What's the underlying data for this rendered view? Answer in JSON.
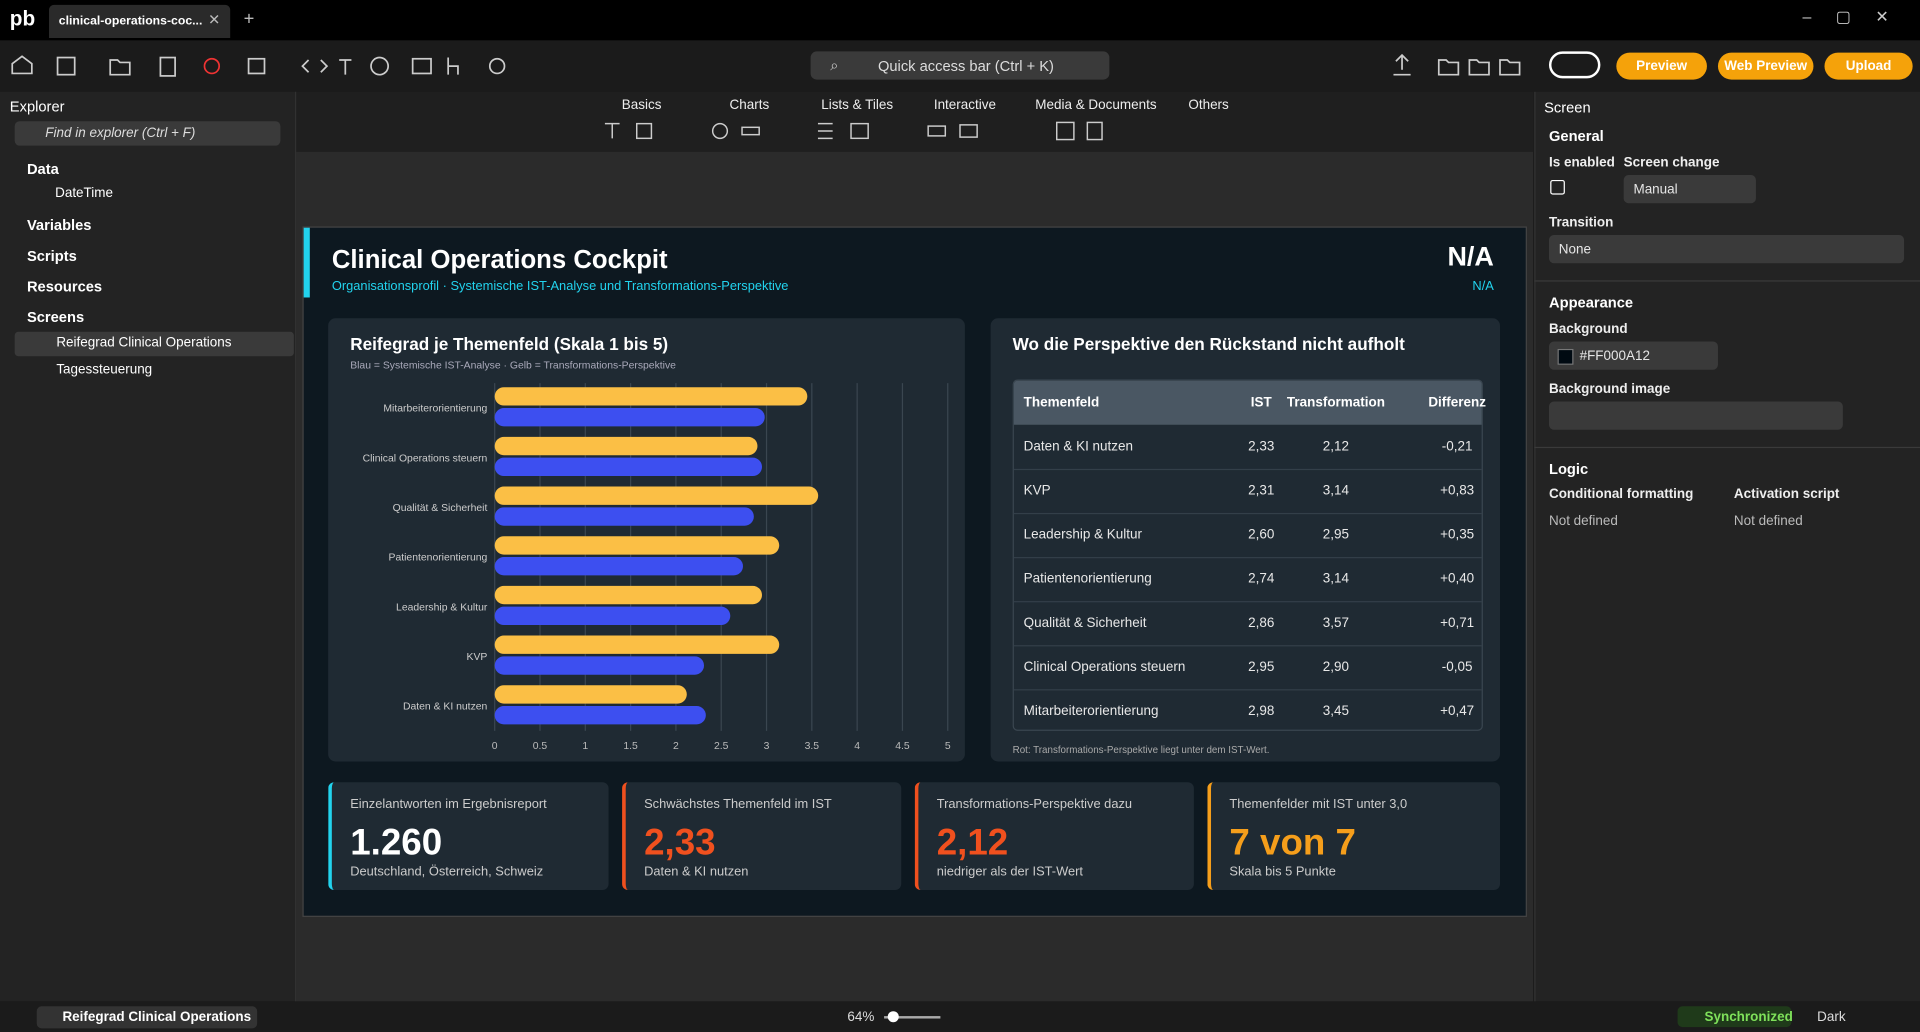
{
  "app": {
    "logo": "pb",
    "tab": "clinical-operations-coc...",
    "quick_access": "Quick access bar (Ctrl + K)",
    "buttons": [
      "Preview",
      "Web Preview",
      "Upload"
    ]
  },
  "explorer": {
    "title": "Explorer",
    "search": "Find in explorer (Ctrl + F)",
    "items": [
      "Data",
      "DateTime",
      "Variables",
      "Scripts",
      "Resources",
      "Screens",
      "Reifegrad Clinical Operations",
      "Tagessteuerung"
    ]
  },
  "ribbon": {
    "tabs": [
      "Basics",
      "Charts",
      "Lists & Tiles",
      "Interactive",
      "Media & Documents",
      "Others"
    ]
  },
  "properties": {
    "title": "Screen",
    "general": "General",
    "is_enabled": "Is enabled",
    "screen_change": "Screen change",
    "screen_change_value": "Manual",
    "transition": "Transition",
    "transition_value": "None",
    "appearance": "Appearance",
    "background": "Background",
    "background_value": "#FF000A12",
    "background_image": "Background image",
    "logic": "Logic",
    "conditional_formatting": "Conditional formatting",
    "conditional_formatting_value": "Not defined",
    "activation_script": "Activation script",
    "activation_script_value": "Not defined"
  },
  "status": {
    "screen": "Reifegrad Clinical Operations",
    "zoom": "64%",
    "sync": "Synchronized",
    "theme": "Dark"
  },
  "dashboard": {
    "title": "Clinical Operations Cockpit",
    "subtitle": "Organisationsprofil · Systemische IST-Analyse und Transformations-Perspektive",
    "status": "N/A",
    "status_sub": "N/A",
    "table": {
      "title": "Wo die Perspektive den Rückstand nicht aufholt",
      "header": [
        "Themenfeld",
        "IST",
        "Transformation",
        "Differenz"
      ],
      "rows": [
        [
          "Daten & KI nutzen",
          "2,33",
          "2,12",
          "-0,21"
        ],
        [
          "KVP",
          "2,31",
          "3,14",
          "+0,83"
        ],
        [
          "Leadership & Kultur",
          "2,60",
          "2,95",
          "+0,35"
        ],
        [
          "Patientenorientierung",
          "2,74",
          "3,14",
          "+0,40"
        ],
        [
          "Qualität & Sicherheit",
          "2,86",
          "3,57",
          "+0,71"
        ],
        [
          "Clinical Operations steuern",
          "2,95",
          "2,90",
          "-0,05"
        ],
        [
          "Mitarbeiterorientierung",
          "2,98",
          "3,45",
          "+0,47"
        ]
      ],
      "note": "Rot: Transformations-Perspektive liegt unter dem IST-Wert."
    },
    "kpis": [
      {
        "label": "Einzelantworten im Ergebnisreport",
        "value": "1.260",
        "sub": "Deutschland, Österreich, Schweiz",
        "color": "#22d3ee"
      },
      {
        "label": "Schwächstes Themenfeld im IST",
        "value": "2,33",
        "sub": "Daten & KI nutzen",
        "color": "#f0501e"
      },
      {
        "label": "Transformations-Perspektive dazu",
        "value": "2,12",
        "sub": "niedriger als der IST-Wert",
        "color": "#f0501e"
      },
      {
        "label": "Themenfelder mit IST unter 3,0",
        "value": "7 von 7",
        "sub": "Skala bis 5 Punkte",
        "color": "#f59e1b"
      }
    ]
  },
  "chart_data": {
    "type": "hbar",
    "title": "Reifegrad je Themenfeld (Skala 1 bis 5)",
    "subtitle": "Blau = Systemische IST-Analyse · Gelb = Transformations-Perspektive",
    "categories": [
      "Mitarbeiterorientierung",
      "Clinical Operations steuern",
      "Qualität & Sicherheit",
      "Patientenorientierung",
      "Leadership & Kultur",
      "KVP",
      "Daten & KI nutzen"
    ],
    "series": [
      {
        "color": "#fbbf45",
        "values": [
          3.45,
          2.9,
          3.57,
          3.14,
          2.95,
          3.14,
          2.12
        ]
      },
      {
        "color": "#3d4ff0",
        "values": [
          2.98,
          2.95,
          2.86,
          2.74,
          2.6,
          2.31,
          2.33
        ]
      }
    ],
    "xlim": [
      0,
      5
    ],
    "xticks": [
      0,
      0.5,
      1,
      1.5,
      2,
      2.5,
      3,
      3.5,
      4,
      4.5,
      5
    ],
    "grid": true
  }
}
